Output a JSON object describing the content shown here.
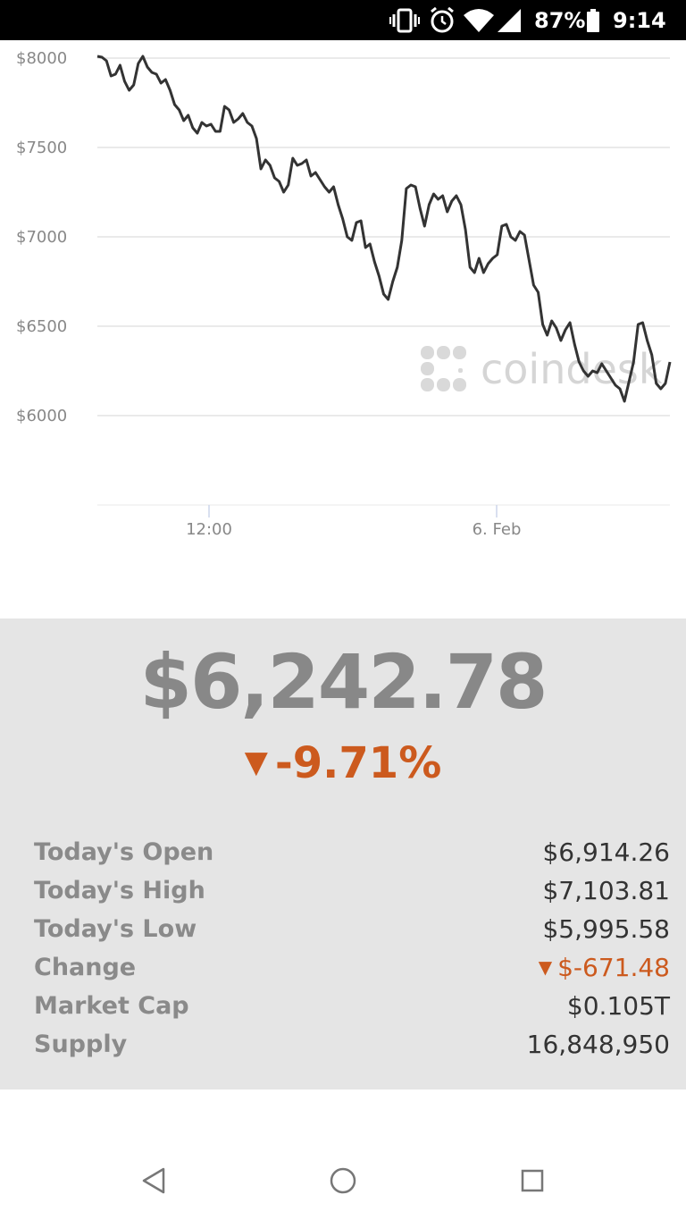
{
  "status_bar": {
    "battery_percent": "87%",
    "time": "9:14",
    "icons": [
      "vibrate-icon",
      "alarm-icon",
      "wifi-icon",
      "cell-signal-icon",
      "battery-icon"
    ]
  },
  "chart_data": {
    "type": "line",
    "title": "",
    "xlabel": "",
    "ylabel": "",
    "y_ticks": [
      "$8000",
      "$7500",
      "$7000",
      "$6500",
      "$6000"
    ],
    "y_tick_values": [
      8000,
      7500,
      7000,
      6500,
      6000
    ],
    "x_ticks": [
      "12:00",
      "6. Feb"
    ],
    "ylim": [
      5500,
      8000
    ],
    "grid": true,
    "line_color": "#333333",
    "watermark": "coindesk",
    "series": [
      {
        "values": [
          8010,
          8005,
          7985,
          7900,
          7910,
          7960,
          7870,
          7820,
          7850,
          7970,
          8010,
          7950,
          7920,
          7910,
          7860,
          7880,
          7820,
          7740,
          7710,
          7650,
          7680,
          7610,
          7580,
          7640,
          7620,
          7630,
          7590,
          7590,
          7730,
          7710,
          7640,
          7660,
          7690,
          7640,
          7620,
          7550,
          7380,
          7430,
          7400,
          7330,
          7310,
          7250,
          7290,
          7440,
          7400,
          7410,
          7430,
          7340,
          7360,
          7320,
          7280,
          7250,
          7280,
          7180,
          7100,
          7000,
          6980,
          7080,
          7090,
          6940,
          6960,
          6860,
          6780,
          6680,
          6650,
          6750,
          6830,
          6980,
          7270,
          7290,
          7280,
          7160,
          7060,
          7180,
          7240,
          7210,
          7230,
          7140,
          7200,
          7230,
          7180,
          7040,
          6830,
          6800,
          6880,
          6800,
          6850,
          6880,
          6900,
          7060,
          7070,
          7000,
          6980,
          7030,
          7010,
          6870,
          6730,
          6690,
          6510,
          6450,
          6530,
          6490,
          6420,
          6480,
          6520,
          6400,
          6300,
          6250,
          6220,
          6250,
          6240,
          6290,
          6250,
          6210,
          6170,
          6150,
          6080,
          6190,
          6300,
          6510,
          6520,
          6420,
          6340,
          6180,
          6150,
          6180,
          6300
        ]
      }
    ]
  },
  "price": {
    "value": "$6,242.78",
    "change_arrow": "▼",
    "change_percent": "-9.71%"
  },
  "stats": [
    {
      "label": "Today's Open",
      "value": "$6,914.26"
    },
    {
      "label": "Today's High",
      "value": "$7,103.81"
    },
    {
      "label": "Today's Low",
      "value": "$5,995.58"
    },
    {
      "label": "Change",
      "value": "$-671.48",
      "arrow": "▼"
    },
    {
      "label": "Market Cap",
      "value": "$0.105T"
    },
    {
      "label": "Supply",
      "value": "16,848,950"
    }
  ],
  "nav": {
    "icons": [
      "back-icon",
      "home-icon",
      "recents-icon"
    ]
  },
  "colors": {
    "negative": "#cc5a1e",
    "panel_bg": "#e5e5e5",
    "price_gray": "#888888"
  }
}
